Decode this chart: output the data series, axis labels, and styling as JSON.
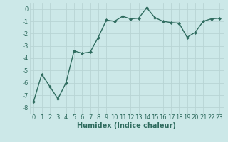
{
  "x": [
    0,
    1,
    2,
    3,
    4,
    5,
    6,
    7,
    8,
    9,
    10,
    11,
    12,
    13,
    14,
    15,
    16,
    17,
    18,
    19,
    20,
    21,
    22,
    23
  ],
  "y": [
    -7.5,
    -5.3,
    -6.3,
    -7.3,
    -6.0,
    -3.4,
    -3.6,
    -3.5,
    -2.3,
    -0.9,
    -1.0,
    -0.6,
    -0.8,
    -0.75,
    0.1,
    -0.7,
    -1.0,
    -1.1,
    -1.15,
    -2.3,
    -1.9,
    -1.0,
    -0.8,
    -0.75
  ],
  "line_color": "#2e6b5e",
  "marker": "D",
  "marker_size": 2,
  "bg_color": "#cce8e8",
  "grid_color": "#b8d4d4",
  "xlabel": "Humidex (Indice chaleur)",
  "xlim": [
    -0.5,
    23.5
  ],
  "ylim": [
    -8.5,
    0.5
  ],
  "yticks": [
    0,
    -1,
    -2,
    -3,
    -4,
    -5,
    -6,
    -7,
    -8
  ],
  "xticks": [
    0,
    1,
    2,
    3,
    4,
    5,
    6,
    7,
    8,
    9,
    10,
    11,
    12,
    13,
    14,
    15,
    16,
    17,
    18,
    19,
    20,
    21,
    22,
    23
  ],
  "tick_fontsize": 6,
  "xlabel_fontsize": 7,
  "line_width": 1.0
}
